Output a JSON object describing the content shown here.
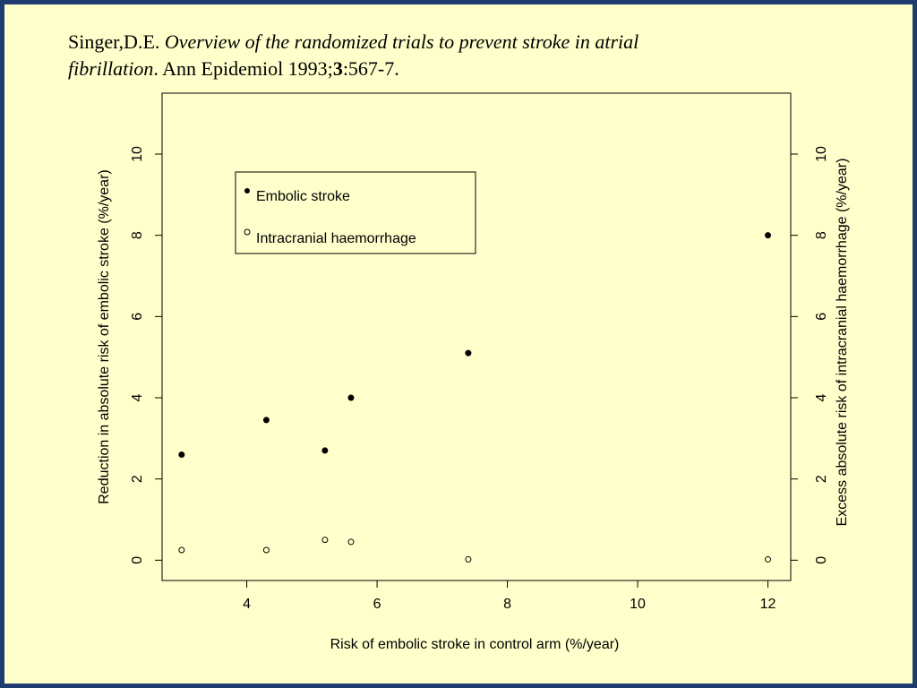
{
  "citation": {
    "author": "Singer,D.E.",
    "title_line1": "Overview of the randomized trials to prevent stroke in atrial",
    "title_line2": "fibrillation",
    "journal": ". Ann Epidemiol 1993;",
    "volume": "3",
    "pages": ":567-7."
  },
  "colors": {
    "slide_background": "#ffffcc",
    "frame_border": "#1f3c6e",
    "ink": "#000000"
  },
  "chart_data": {
    "type": "scatter",
    "title": "",
    "xlabel": "Risk of embolic stroke in control arm (%/year)",
    "ylabel": "Reduction in absolute risk of embolic stroke (%/year)",
    "ylabel_right": "Excess absolute risk of intracranial haemorrhage (%/year)",
    "xlim": [
      2.7,
      12.35
    ],
    "ylim": [
      -0.5,
      11.5
    ],
    "x_ticks": [
      4,
      6,
      8,
      10,
      12
    ],
    "y_ticks": [
      0,
      2,
      4,
      6,
      8,
      10
    ],
    "grid": false,
    "legend_position": "top-left",
    "series": [
      {
        "name": "Embolic stroke",
        "marker": "filled-circle",
        "x": [
          3.0,
          4.3,
          5.2,
          5.6,
          7.4,
          12.0
        ],
        "y": [
          2.6,
          3.45,
          2.7,
          4.0,
          5.1,
          8.0
        ]
      },
      {
        "name": "Intracranial haemorrhage",
        "marker": "open-circle",
        "x": [
          3.0,
          4.3,
          5.2,
          5.6,
          7.4,
          12.0
        ],
        "y": [
          0.25,
          0.25,
          0.5,
          0.45,
          0.02,
          0.02
        ]
      }
    ]
  }
}
